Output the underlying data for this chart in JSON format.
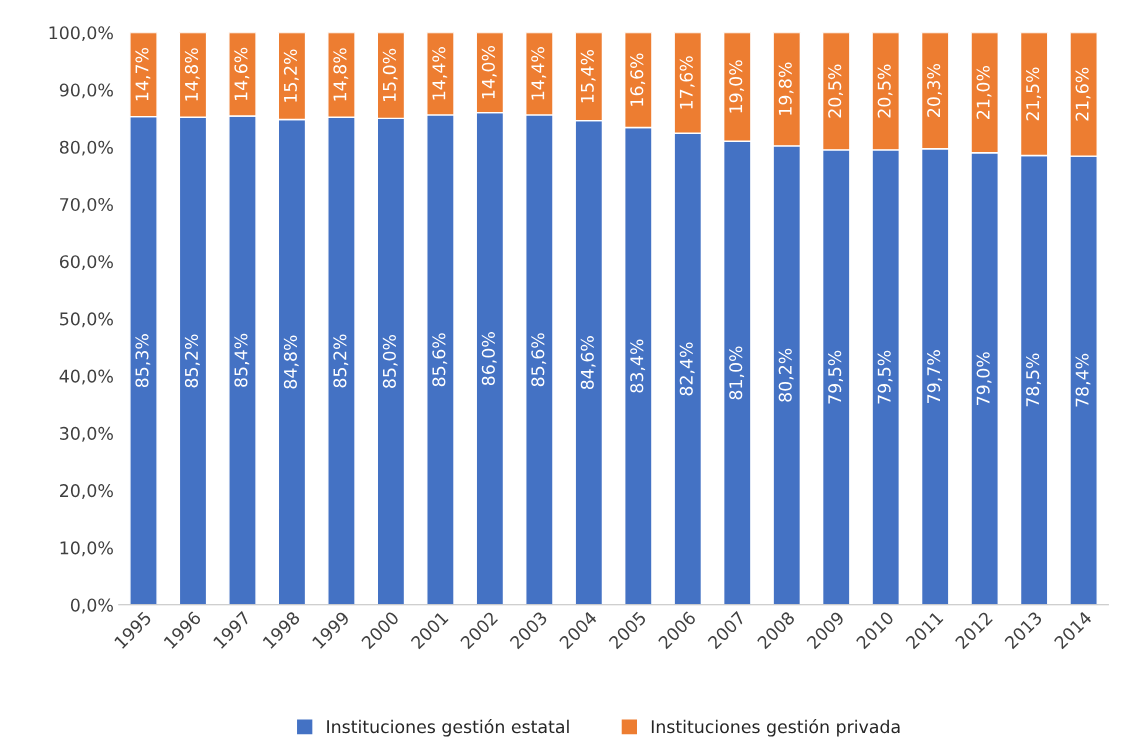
{
  "chart_data": {
    "type": "bar",
    "stacked": true,
    "categories": [
      "1995",
      "1996",
      "1997",
      "1998",
      "1999",
      "2000",
      "2001",
      "2002",
      "2003",
      "2004",
      "2005",
      "2006",
      "2007",
      "2008",
      "2009",
      "2010",
      "2011",
      "2012",
      "2013",
      "2014"
    ],
    "series": [
      {
        "name": "Instituciones gestión estatal",
        "color": "#4472c4",
        "values": [
          85.3,
          85.2,
          85.4,
          84.8,
          85.2,
          85.0,
          85.6,
          86.0,
          85.6,
          84.6,
          83.4,
          82.4,
          81.0,
          80.2,
          79.5,
          79.5,
          79.7,
          79.0,
          78.5,
          78.4
        ],
        "value_labels": [
          "85,3%",
          "85,2%",
          "85,4%",
          "84,8%",
          "85,2%",
          "85,0%",
          "85,6%",
          "86,0%",
          "85,6%",
          "84,6%",
          "83,4%",
          "82,4%",
          "81,0%",
          "80,2%",
          "79,5%",
          "79,5%",
          "79,7%",
          "79,0%",
          "78,5%",
          "78,4%"
        ]
      },
      {
        "name": "Instituciones gestión privada",
        "color": "#ed7d31",
        "values": [
          14.7,
          14.8,
          14.6,
          15.2,
          14.8,
          15.0,
          14.4,
          14.0,
          14.4,
          15.4,
          16.6,
          17.6,
          19.0,
          19.8,
          20.5,
          20.5,
          20.3,
          21.0,
          21.5,
          21.6
        ],
        "value_labels": [
          "14,7%",
          "14,8%",
          "14,6%",
          "15,2%",
          "14,8%",
          "15,0%",
          "14,4%",
          "14,0%",
          "14,4%",
          "15,4%",
          "16,6%",
          "17,6%",
          "19,0%",
          "19,8%",
          "20,5%",
          "20,5%",
          "20,3%",
          "21,0%",
          "21,5%",
          "21,6%"
        ]
      }
    ],
    "ylim": [
      0,
      100
    ],
    "yticks": [
      {
        "value": 0,
        "label": "0,0%"
      },
      {
        "value": 10,
        "label": "10,0%"
      },
      {
        "value": 20,
        "label": "20,0%"
      },
      {
        "value": 30,
        "label": "30,0%"
      },
      {
        "value": 40,
        "label": "40,0%"
      },
      {
        "value": 50,
        "label": "50,0%"
      },
      {
        "value": 60,
        "label": "60,0%"
      },
      {
        "value": 70,
        "label": "70,0%"
      },
      {
        "value": 80,
        "label": "80,0%"
      },
      {
        "value": 90,
        "label": "90,0%"
      },
      {
        "value": 100,
        "label": "100,0%"
      }
    ],
    "grid": false,
    "legend": "bottom"
  }
}
